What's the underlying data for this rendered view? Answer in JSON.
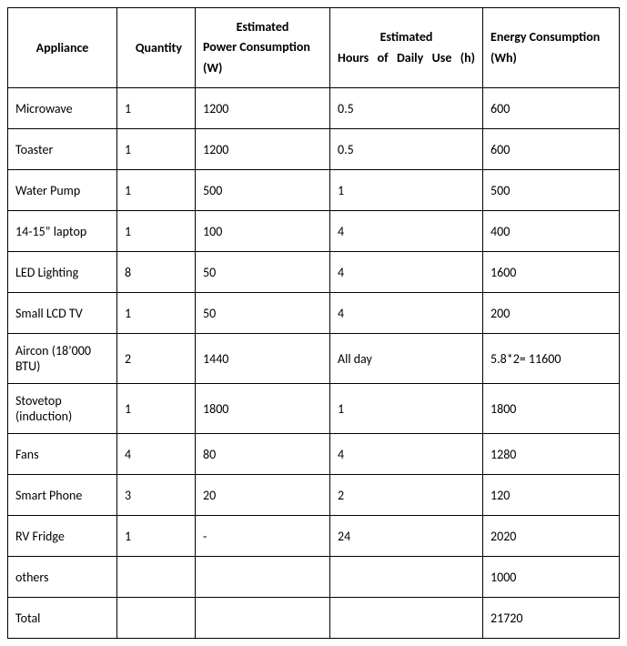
{
  "headers": {
    "appliance": "Appliance",
    "quantity": "Quantity",
    "power_est": "Estimated",
    "power_rest": "Power Consumption (W)",
    "hours_est": "Estimated",
    "hours_rest": "Hours of Daily Use (h)",
    "energy": "Energy Consumption (Wh)"
  },
  "rows": [
    {
      "appliance": "Microwave",
      "quantity": "1",
      "power": "1200",
      "hours": "0.5",
      "energy": "600"
    },
    {
      "appliance": "Toaster",
      "quantity": "1",
      "power": "1200",
      "hours": "0.5",
      "energy": "600"
    },
    {
      "appliance": "Water Pump",
      "quantity": "1",
      "power": "500",
      "hours": "1",
      "energy": "500"
    },
    {
      "appliance": "14-15” laptop",
      "quantity": "1",
      "power": "100",
      "hours": "4",
      "energy": "400"
    },
    {
      "appliance": "LED Lighting",
      "quantity": "8",
      "power": "50",
      "hours": "4",
      "energy": "1600"
    },
    {
      "appliance": "Small LCD TV",
      "quantity": "1",
      "power": "50",
      "hours": "4",
      "energy": "200"
    },
    {
      "appliance": "Aircon (18’000 BTU)",
      "quantity": "2",
      "power": "1440",
      "hours": "All day",
      "energy": "5.8*2= 11600"
    },
    {
      "appliance": "Stovetop (induction)",
      "quantity": "1",
      "power": "1800",
      "hours": "1",
      "energy": "1800"
    },
    {
      "appliance": "Fans",
      "quantity": "4",
      "power": "80",
      "hours": "4",
      "energy": "1280"
    },
    {
      "appliance": "Smart Phone",
      "quantity": "3",
      "power": "20",
      "hours": "2",
      "energy": "120"
    },
    {
      "appliance": "RV Fridge",
      "quantity": "1",
      "power": "-",
      "hours": "24",
      "energy": "2020"
    },
    {
      "appliance": "others",
      "quantity": "",
      "power": "",
      "hours": "",
      "energy": "1000"
    },
    {
      "appliance": "Total",
      "quantity": "",
      "power": "",
      "hours": "",
      "energy": "21720"
    }
  ]
}
